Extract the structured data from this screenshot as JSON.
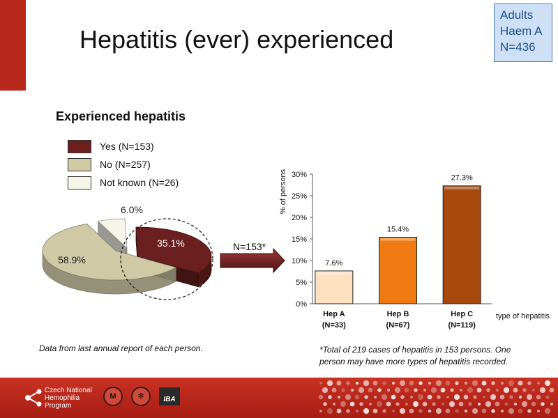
{
  "slide": {
    "title": "Hepatitis (ever) experienced",
    "tag_lines": [
      "Adults",
      "Haem A",
      "N=436"
    ],
    "section_title": "Experienced hepatitis",
    "arrow_label": "N=153*",
    "note_left": "Data from last annual report of each person.",
    "note_right": "*Total of 219 cases of hepatitis in 153 persons. One person may have more types of hepatitis recorded."
  },
  "colors": {
    "accent_red": "#b8271c",
    "pie_yes": "#6b1f1f",
    "pie_no": "#cfc9a6",
    "pie_not_known": "#f7f4ea",
    "bar_hep_a": "#fde0c0",
    "bar_hep_b": "#f07a12",
    "bar_hep_c": "#a7490c"
  },
  "chart_data": [
    {
      "type": "pie",
      "title": "",
      "legend": [
        "Yes (N=153)",
        "No (N=257)",
        "Not known (N=26)"
      ],
      "slices": [
        {
          "name": "Yes (N=153)",
          "value": 35.1,
          "label": "35.1%",
          "color": "#6b1f1f"
        },
        {
          "name": "No (N=257)",
          "value": 58.9,
          "label": "58.9%",
          "color": "#cfc9a6"
        },
        {
          "name": "Not known (N=26)",
          "value": 6.0,
          "label": "6.0%",
          "color": "#f7f4ea"
        }
      ]
    },
    {
      "type": "bar",
      "title": "",
      "categories": [
        "Hep A",
        "Hep B",
        "Hep C"
      ],
      "category_sublabels": [
        "(N=33)",
        "(N=67)",
        "(N=119)"
      ],
      "values": [
        7.6,
        15.4,
        27.3
      ],
      "value_labels": [
        "7.6%",
        "15.4%",
        "27.3%"
      ],
      "ylabel": "% of persons",
      "xlabel": "type of hepatitis",
      "ylim": [
        0,
        30
      ],
      "yticks": [
        0,
        5,
        10,
        15,
        20,
        25,
        30
      ],
      "ytick_labels": [
        "0%",
        "5%",
        "10%",
        "15%",
        "20%",
        "25%",
        "30%"
      ],
      "grid": false
    }
  ],
  "footer": {
    "org_lines": [
      "Czech National",
      "Hemophilia",
      "Program"
    ],
    "logo_text": "IBA"
  }
}
